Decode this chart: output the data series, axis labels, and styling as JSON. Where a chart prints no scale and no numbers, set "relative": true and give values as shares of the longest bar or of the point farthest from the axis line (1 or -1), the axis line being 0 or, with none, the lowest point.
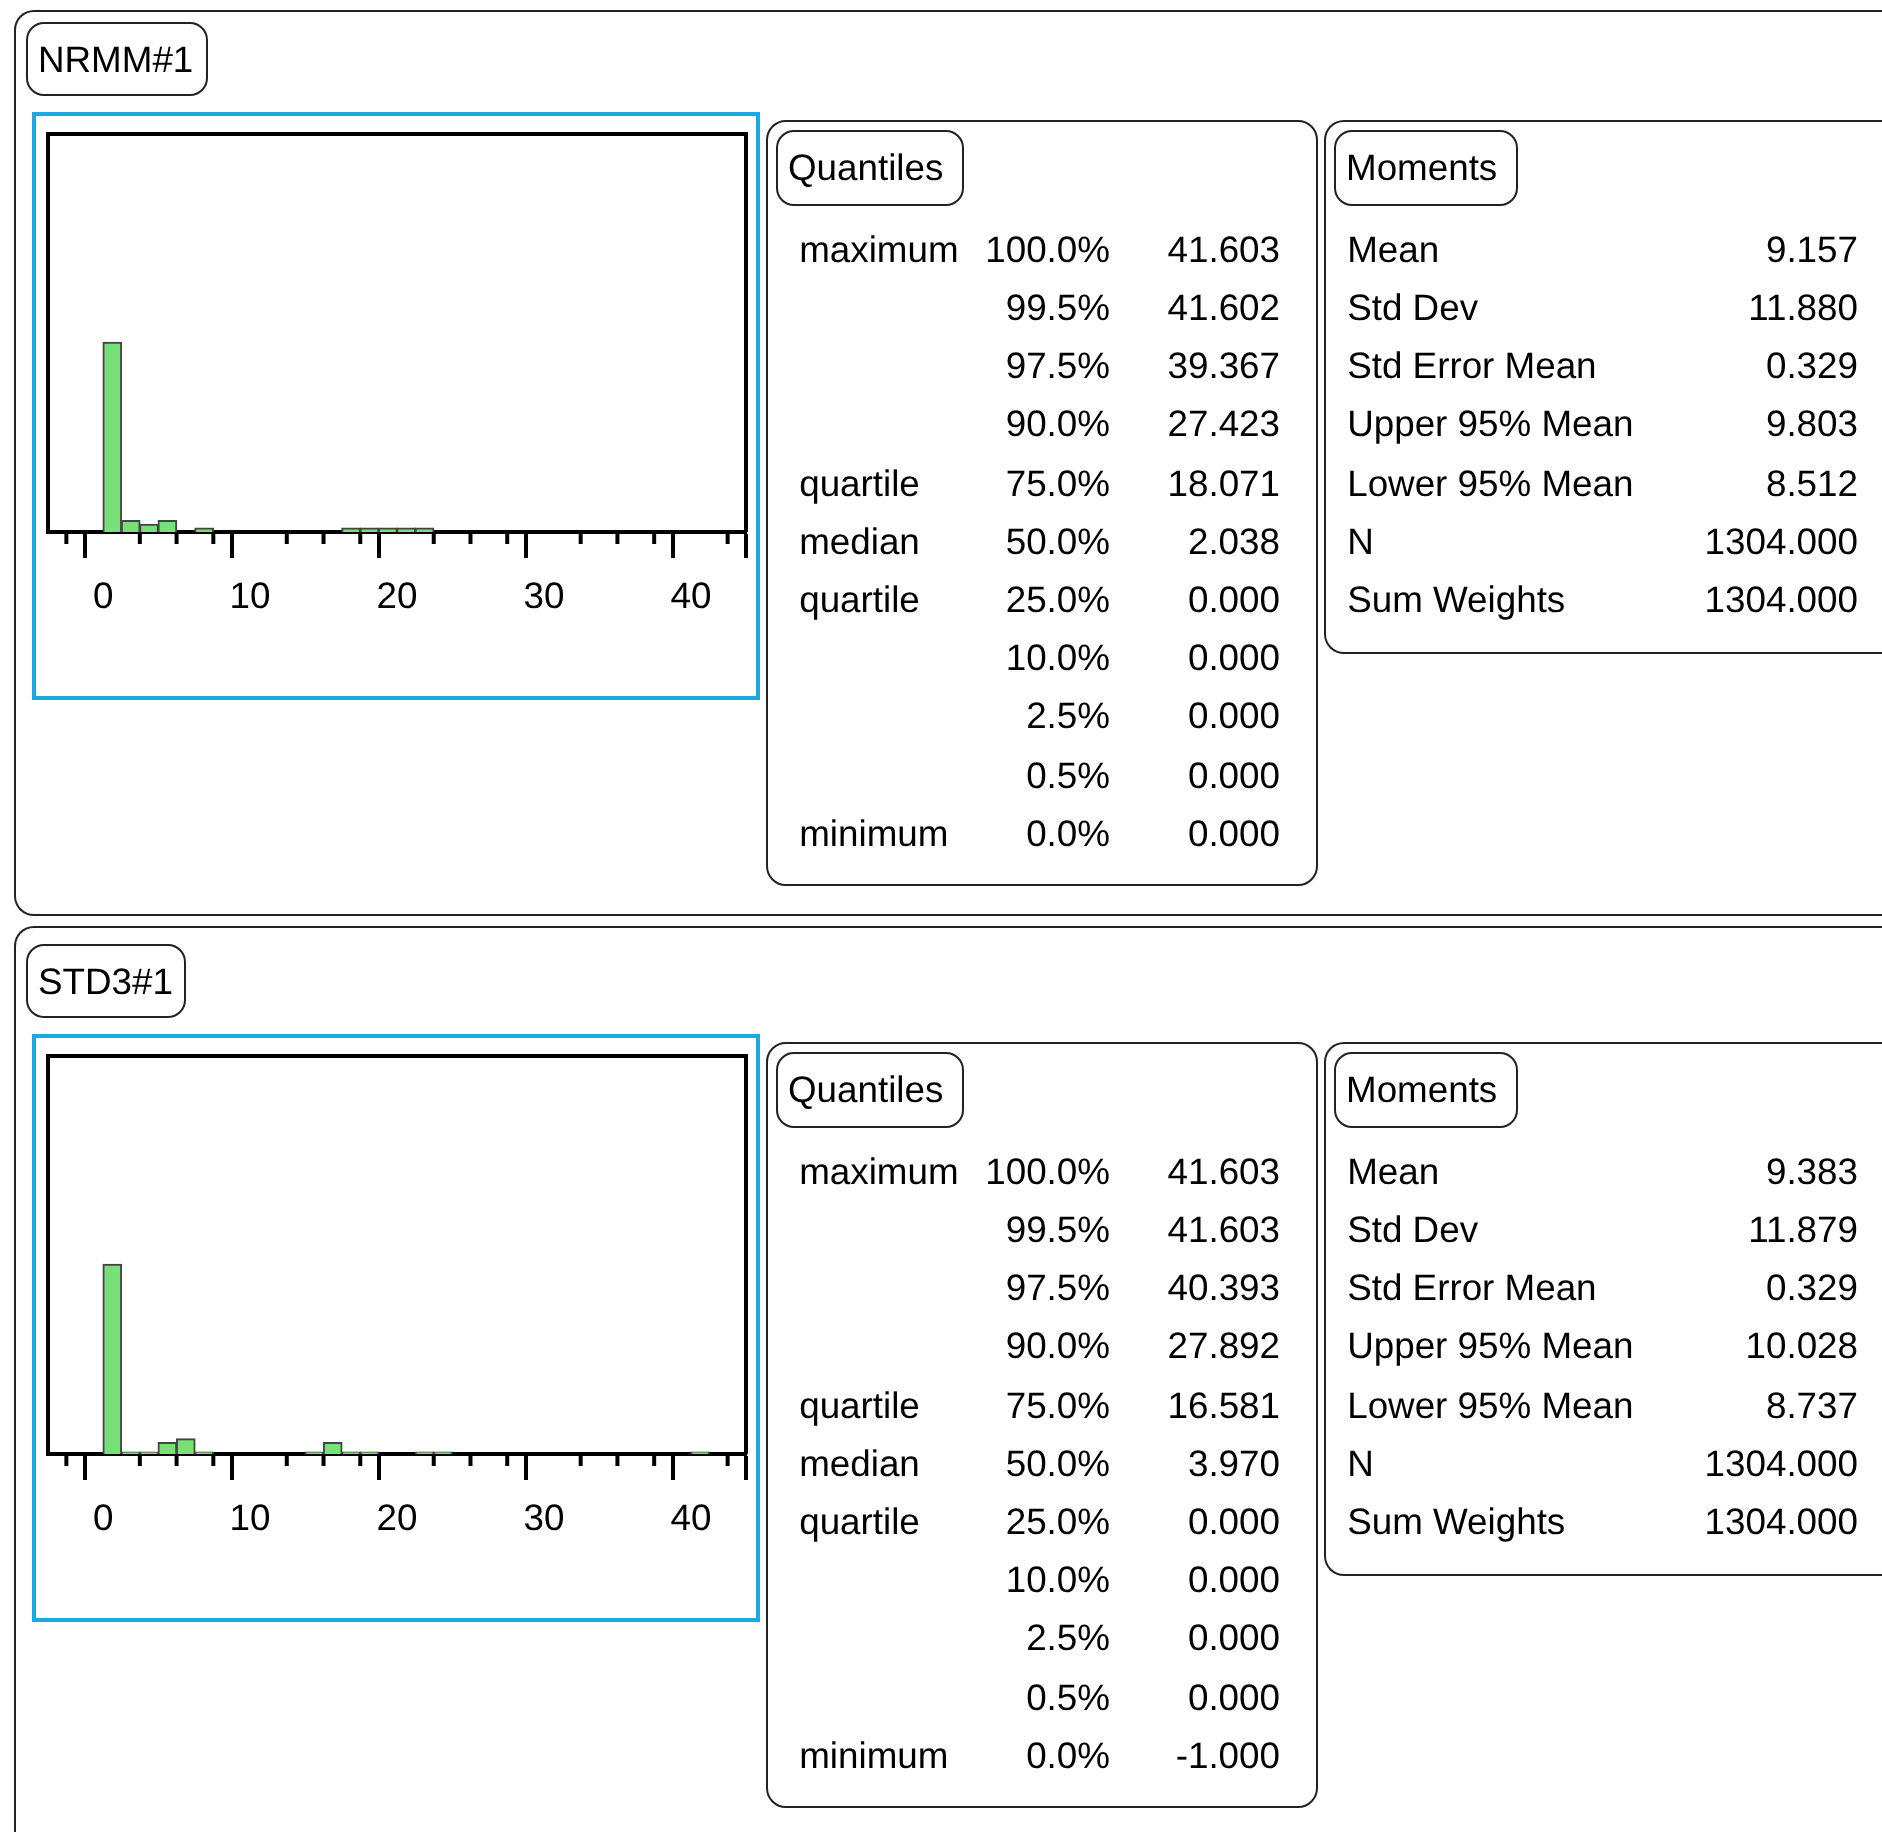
{
  "chart_data": [
    {
      "type": "bar",
      "title": "NRMM#1",
      "relative": true,
      "color": "#78e078",
      "x": [
        0.625,
        1.875,
        3.125,
        4.375,
        5.625,
        6.875,
        8.125,
        9.375,
        10.625,
        11.875,
        13.125,
        14.375,
        15.625,
        16.875,
        18.125,
        19.375,
        20.625,
        21.875,
        23.125,
        24.375,
        25.625,
        26.875,
        28.125,
        29.375,
        30.625,
        31.875,
        33.125,
        34.375,
        35.625,
        36.875,
        38.125,
        39.375,
        40.625,
        41.875
      ],
      "values": [
        1,
        0.06,
        0.04,
        0.06,
        0,
        0.02,
        0,
        0,
        0,
        0,
        0,
        0,
        0,
        0.02,
        0.02,
        0.02,
        0.02,
        0.02,
        0,
        0,
        0,
        0,
        0,
        0,
        0,
        0,
        0,
        0,
        0,
        0,
        0,
        0,
        0,
        0
      ],
      "xlim": [
        -3.75,
        43.75
      ],
      "xticks": [
        {
          "value": -2.5,
          "label": null
        },
        0,
        {
          "value": 2.5,
          "label": null
        },
        {
          "value": 5,
          "label": null
        },
        {
          "value": 7.5,
          "label": null
        },
        10,
        {
          "value": 12.5,
          "label": null
        },
        {
          "value": 15,
          "label": null
        },
        {
          "value": 17.5,
          "label": null
        },
        20,
        {
          "value": 22.5,
          "label": null
        },
        {
          "value": 25,
          "label": null
        },
        {
          "value": 27.5,
          "label": null
        },
        30,
        {
          "value": 32.5,
          "label": null
        },
        {
          "value": 35,
          "label": null
        },
        {
          "value": 37.5,
          "label": null
        },
        40,
        {
          "value": 42.5,
          "label": null
        }
      ]
    },
    {
      "type": "other",
      "title": "Quantiles",
      "categories": [
        "100.0%",
        "99.5%",
        "97.5%",
        "90.0%",
        "75.0%",
        "50.0%",
        "25.0%",
        "10.0%",
        "2.5%",
        "0.5%",
        "0.0%"
      ],
      "series": [
        {
          "values": [
            41.603,
            41.602,
            39.367,
            27.423,
            18.071,
            2.038,
            0,
            0,
            0,
            0,
            0
          ],
          "value_labels": [
            "41.603",
            "41.602",
            "39.367",
            "27.423",
            "18.071",
            "2.038",
            "0.000",
            "0.000",
            "0.000",
            "0.000",
            "0.000"
          ]
        }
      ],
      "annotations": [
        {
          "text": "maximum",
          "x": "100.0%"
        },
        {
          "text": "quartile",
          "x": "75.0%"
        },
        {
          "text": "median",
          "x": "50.0%"
        },
        {
          "text": "quartile",
          "x": "25.0%"
        },
        {
          "text": "minimum",
          "x": "0.0%"
        }
      ]
    },
    {
      "type": "other",
      "title": "Moments",
      "categories": [
        "Mean",
        "Std Dev",
        "Std Error Mean",
        "Upper 95% Mean",
        "Lower 95% Mean",
        "N",
        "Sum Weights"
      ],
      "series": [
        {
          "values": [
            9.157,
            11.88,
            0.329,
            9.803,
            8.512,
            1304,
            1304
          ],
          "value_labels": [
            "9.157",
            "11.880",
            "0.329",
            "9.803",
            "8.512",
            "1304.000",
            "1304.000"
          ]
        }
      ]
    },
    {
      "type": "bar",
      "title": "STD3#1",
      "relative": true,
      "color": "#78e078",
      "x": [
        0.625,
        1.875,
        3.125,
        4.375,
        5.625,
        6.875,
        8.125,
        9.375,
        10.625,
        11.875,
        13.125,
        14.375,
        15.625,
        16.875,
        18.125,
        19.375,
        20.625,
        21.875,
        23.125,
        24.375,
        25.625,
        26.875,
        28.125,
        29.375,
        30.625,
        31.875,
        33.125,
        34.375,
        35.625,
        36.875,
        38.125,
        39.375,
        40.625,
        41.875
      ],
      "values": [
        1,
        0.01,
        0.01,
        0.06,
        0.08,
        0.01,
        0,
        0,
        0,
        0,
        0,
        0.01,
        0.06,
        0.01,
        0.01,
        0,
        0,
        0.01,
        0.01,
        0,
        0,
        0,
        0,
        0,
        0,
        0,
        0,
        0,
        0,
        0,
        0,
        0,
        0.01,
        0
      ],
      "xlim": [
        -3.75,
        43.75
      ],
      "xticks": [
        {
          "value": -2.5,
          "label": null
        },
        0,
        {
          "value": 2.5,
          "label": null
        },
        {
          "value": 5,
          "label": null
        },
        {
          "value": 7.5,
          "label": null
        },
        10,
        {
          "value": 12.5,
          "label": null
        },
        {
          "value": 15,
          "label": null
        },
        {
          "value": 17.5,
          "label": null
        },
        20,
        {
          "value": 22.5,
          "label": null
        },
        {
          "value": 25,
          "label": null
        },
        {
          "value": 27.5,
          "label": null
        },
        30,
        {
          "value": 32.5,
          "label": null
        },
        {
          "value": 35,
          "label": null
        },
        {
          "value": 37.5,
          "label": null
        },
        40,
        {
          "value": 42.5,
          "label": null
        }
      ]
    },
    {
      "type": "other",
      "title": "Quantiles",
      "categories": [
        "100.0%",
        "99.5%",
        "97.5%",
        "90.0%",
        "75.0%",
        "50.0%",
        "25.0%",
        "10.0%",
        "2.5%",
        "0.5%",
        "0.0%"
      ],
      "series": [
        {
          "values": [
            41.603,
            41.603,
            40.393,
            27.892,
            16.581,
            3.97,
            0,
            0,
            0,
            0,
            -1
          ],
          "value_labels": [
            "41.603",
            "41.603",
            "40.393",
            "27.892",
            "16.581",
            "3.970",
            "0.000",
            "0.000",
            "0.000",
            "0.000",
            "-1.000"
          ]
        }
      ],
      "annotations": [
        {
          "text": "maximum",
          "x": "100.0%"
        },
        {
          "text": "quartile",
          "x": "75.0%"
        },
        {
          "text": "median",
          "x": "50.0%"
        },
        {
          "text": "quartile",
          "x": "25.0%"
        },
        {
          "text": "minimum",
          "x": "0.0%"
        }
      ]
    },
    {
      "type": "other",
      "title": "Moments",
      "categories": [
        "Mean",
        "Std Dev",
        "Std Error Mean",
        "Upper 95% Mean",
        "Lower 95% Mean",
        "N",
        "Sum Weights"
      ],
      "series": [
        {
          "values": [
            9.383,
            11.879,
            0.329,
            10.028,
            8.737,
            1304,
            1304
          ],
          "value_labels": [
            "9.383",
            "11.879",
            "0.329",
            "10.028",
            "8.737",
            "1304.000",
            "1304.000"
          ]
        }
      ]
    }
  ]
}
